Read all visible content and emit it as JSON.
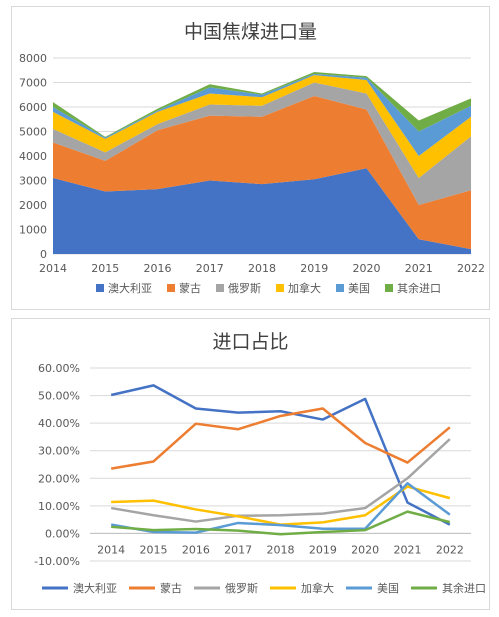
{
  "chart_data": [
    {
      "type": "area",
      "stacked": true,
      "title": "中国焦煤进口量",
      "categories": [
        "2014",
        "2015",
        "2016",
        "2017",
        "2018",
        "2019",
        "2020",
        "2021",
        "2022"
      ],
      "ylim": [
        0,
        8000
      ],
      "yticks": [
        "0",
        "1000",
        "2000",
        "3000",
        "4000",
        "5000",
        "6000",
        "7000",
        "8000"
      ],
      "grid": true,
      "legend_position": "bottom",
      "series": [
        {
          "name": "澳大利亚",
          "color": "#4472C4",
          "values": [
            3100,
            2550,
            2650,
            3000,
            2850,
            3050,
            3500,
            600,
            200
          ]
        },
        {
          "name": "蒙古",
          "color": "#ED7D31",
          "values": [
            1450,
            1250,
            2400,
            2650,
            2750,
            3400,
            2400,
            1400,
            2400
          ]
        },
        {
          "name": "俄罗斯",
          "color": "#A5A5A5",
          "values": [
            550,
            350,
            250,
            450,
            450,
            550,
            650,
            1100,
            2200
          ]
        },
        {
          "name": "加拿大",
          "color": "#FFC000",
          "values": [
            700,
            550,
            500,
            450,
            350,
            300,
            550,
            900,
            800
          ]
        },
        {
          "name": "美国",
          "color": "#5B9BD5",
          "values": [
            200,
            50,
            50,
            250,
            100,
            50,
            100,
            1000,
            450
          ]
        },
        {
          "name": "其余进口",
          "color": "#70AD47",
          "values": [
            200,
            30,
            80,
            130,
            50,
            80,
            60,
            450,
            300
          ]
        }
      ]
    },
    {
      "type": "line",
      "title": "进口占比",
      "categories": [
        "2014",
        "2015",
        "2016",
        "2017",
        "2018",
        "2019",
        "2020",
        "2021",
        "2022"
      ],
      "ylim": [
        -10,
        60
      ],
      "yticks": [
        "-10.00%",
        "0.00%",
        "10.00%",
        "20.00%",
        "30.00%",
        "40.00%",
        "50.00%",
        "60.00%"
      ],
      "grid": true,
      "legend_position": "bottom",
      "series": [
        {
          "name": "澳大利亚",
          "color": "#4472C4",
          "values": [
            50.2,
            53.7,
            45.3,
            43.8,
            44.3,
            41.3,
            48.8,
            11.2,
            3.2
          ]
        },
        {
          "name": "蒙古",
          "color": "#ED7D31",
          "values": [
            23.5,
            26.1,
            39.8,
            37.8,
            42.6,
            45.3,
            32.8,
            25.7,
            38.5
          ]
        },
        {
          "name": "俄罗斯",
          "color": "#A5A5A5",
          "values": [
            9.2,
            6.6,
            4.3,
            6.4,
            6.6,
            7.2,
            9.2,
            20.0,
            34.2
          ]
        },
        {
          "name": "加拿大",
          "color": "#FFC000",
          "values": [
            11.4,
            11.9,
            8.7,
            6.2,
            3.2,
            4.0,
            6.6,
            17.0,
            12.8
          ]
        },
        {
          "name": "美国",
          "color": "#5B9BD5",
          "values": [
            3.2,
            0.5,
            0.3,
            3.8,
            3.0,
            1.7,
            1.7,
            18.2,
            6.8
          ]
        },
        {
          "name": "其余进口",
          "color": "#70AD47",
          "values": [
            2.4,
            1.2,
            1.6,
            1.0,
            -0.3,
            0.5,
            1.2,
            7.9,
            4.1
          ]
        }
      ]
    }
  ]
}
